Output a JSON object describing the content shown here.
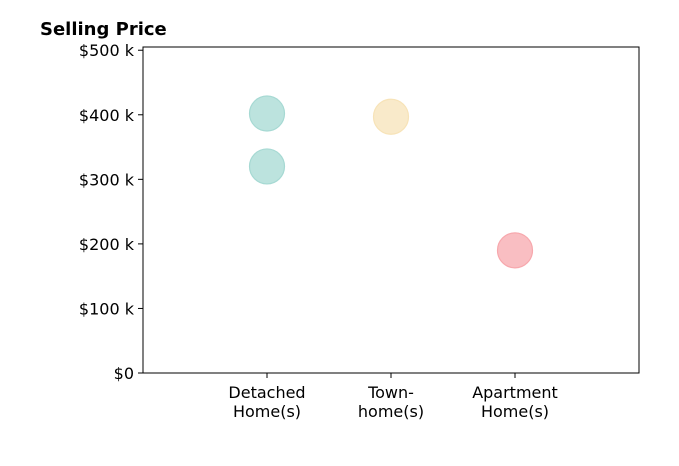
{
  "chart_data": {
    "type": "scatter",
    "title": "Selling Price",
    "xlabel": "",
    "ylabel": "",
    "categories": [
      {
        "lines": [
          "Detached",
          "Home(s)"
        ]
      },
      {
        "lines": [
          "Town-",
          "home(s)"
        ]
      },
      {
        "lines": [
          "Apartment",
          "Home(s)"
        ]
      }
    ],
    "x_range": [
      -1,
      3
    ],
    "ylim": [
      0,
      505
    ],
    "y_ticks": [
      {
        "value": 0,
        "label": "$0"
      },
      {
        "value": 100,
        "label": "$100 k"
      },
      {
        "value": 200,
        "label": "$200 k"
      },
      {
        "value": 300,
        "label": "$300 k"
      },
      {
        "value": 400,
        "label": "$400 k"
      },
      {
        "value": 500,
        "label": "$500 k"
      }
    ],
    "points": [
      {
        "category": 0,
        "value": 402,
        "color": "#a6d9d3"
      },
      {
        "category": 0,
        "value": 320,
        "color": "#a6d9d3"
      },
      {
        "category": 1,
        "value": 397,
        "color": "#f7e3b8"
      },
      {
        "category": 2,
        "value": 190,
        "color": "#f7a8ad"
      }
    ],
    "grid": false,
    "legend": "none"
  }
}
